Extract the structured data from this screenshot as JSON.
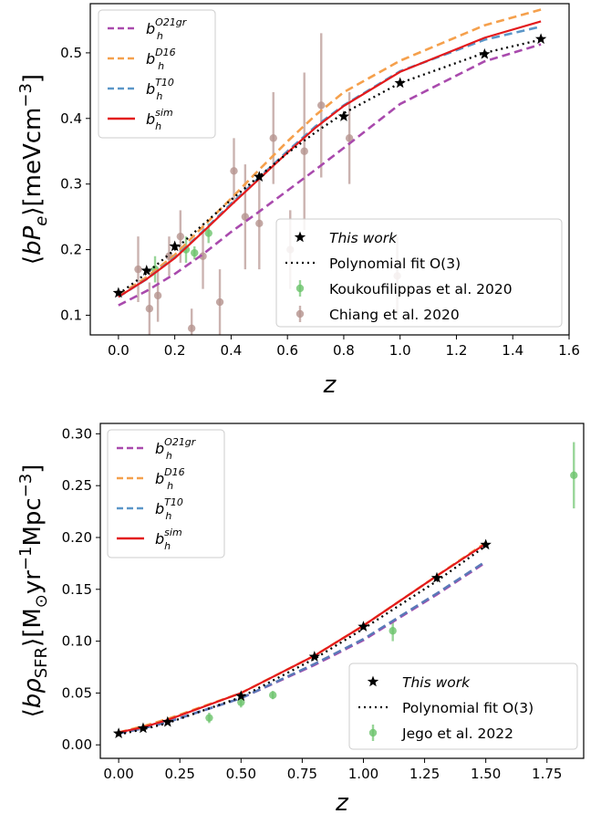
{
  "chart_data": [
    {
      "type": "line",
      "xlabel": "z",
      "ylabel": "⟨bP_e⟩[meVcm⁻³]",
      "xlim": [
        -0.1,
        1.6
      ],
      "ylim": [
        0.07,
        0.575
      ],
      "xticks": [
        "0.0",
        "0.2",
        "0.4",
        "0.6",
        "0.8",
        "1.0",
        "1.2",
        "1.4",
        "1.6"
      ],
      "yticks": [
        "0.1",
        "0.2",
        "0.3",
        "0.4",
        "0.5"
      ],
      "bias_legend": [
        {
          "base": "b",
          "sub": "h",
          "sup": "O21gr",
          "color": "#a94aad",
          "style": "dashed"
        },
        {
          "base": "b",
          "sub": "h",
          "sup": "D16",
          "color": "#f5a04c",
          "style": "dashed"
        },
        {
          "base": "b",
          "sub": "h",
          "sup": "T10",
          "color": "#5a96c8",
          "style": "dashed"
        },
        {
          "base": "b",
          "sub": "h",
          "sup": "sim",
          "color": "#e31a1c",
          "style": "solid"
        }
      ],
      "data_legend": [
        {
          "label": "This work",
          "italic": true,
          "marker": "star",
          "color": "#000000"
        },
        {
          "label": "Polynomial fit O(3)",
          "italic": false,
          "marker": "dotted",
          "color": "#000000"
        },
        {
          "label": "Koukoufilippas et al. 2020",
          "italic": false,
          "marker": "errorbar",
          "color": "#6cc36c"
        },
        {
          "label": "Chiang et al. 2020",
          "italic": false,
          "marker": "errorbar",
          "color": "#b5938e"
        }
      ],
      "series": [
        {
          "key": "O21gr",
          "color": "#a94aad",
          "dash": "9,5",
          "width": 2.6,
          "x": [
            0,
            0.1,
            0.2,
            0.3,
            0.4,
            0.5,
            0.6,
            0.7,
            0.8,
            1.0,
            1.3,
            1.5
          ],
          "y": [
            0.115,
            0.137,
            0.163,
            0.193,
            0.227,
            0.258,
            0.29,
            0.322,
            0.355,
            0.422,
            0.487,
            0.513
          ]
        },
        {
          "key": "D16",
          "color": "#f5a04c",
          "dash": "9,5",
          "width": 2.6,
          "x": [
            0,
            0.1,
            0.2,
            0.3,
            0.4,
            0.5,
            0.6,
            0.7,
            0.8,
            1.0,
            1.3,
            1.5
          ],
          "y": [
            0.13,
            0.158,
            0.192,
            0.235,
            0.278,
            0.322,
            0.365,
            0.405,
            0.44,
            0.488,
            0.542,
            0.566
          ]
        },
        {
          "key": "T10",
          "color": "#5a96c8",
          "dash": "9,5",
          "width": 2.6,
          "x": [
            0,
            0.1,
            0.2,
            0.3,
            0.4,
            0.5,
            0.6,
            0.7,
            0.8,
            1.0,
            1.3,
            1.5
          ],
          "y": [
            0.128,
            0.155,
            0.188,
            0.228,
            0.27,
            0.31,
            0.35,
            0.388,
            0.42,
            0.472,
            0.52,
            0.54
          ]
        },
        {
          "key": "sim",
          "color": "#e31a1c",
          "dash": "",
          "width": 2.2,
          "x": [
            0,
            0.1,
            0.2,
            0.3,
            0.4,
            0.5,
            0.6,
            0.7,
            0.8,
            1.0,
            1.3,
            1.5
          ],
          "y": [
            0.128,
            0.155,
            0.187,
            0.227,
            0.268,
            0.308,
            0.348,
            0.386,
            0.419,
            0.471,
            0.523,
            0.548
          ]
        },
        {
          "key": "fit",
          "color": "#000000",
          "dash": "2,4",
          "width": 2.3,
          "x": [
            0,
            0.1,
            0.2,
            0.3,
            0.4,
            0.5,
            0.6,
            0.7,
            0.8,
            1.0,
            1.3,
            1.5
          ],
          "y": [
            0.132,
            0.164,
            0.2,
            0.238,
            0.276,
            0.312,
            0.347,
            0.379,
            0.408,
            0.454,
            0.5,
            0.52
          ]
        }
      ],
      "this_work": {
        "x": [
          0,
          0.1,
          0.2,
          0.5,
          0.8,
          1.0,
          1.3,
          1.5
        ],
        "y": [
          0.134,
          0.168,
          0.205,
          0.311,
          0.403,
          0.454,
          0.498,
          0.521
        ]
      },
      "chiang": {
        "color": "#b5938e",
        "points": [
          {
            "x": 0.07,
            "y": 0.17,
            "err": 0.05
          },
          {
            "x": 0.11,
            "y": 0.11,
            "err": 0.04
          },
          {
            "x": 0.14,
            "y": 0.13,
            "err": 0.04
          },
          {
            "x": 0.18,
            "y": 0.19,
            "err": 0.03
          },
          {
            "x": 0.22,
            "y": 0.22,
            "err": 0.04
          },
          {
            "x": 0.26,
            "y": 0.08,
            "err": 0.03
          },
          {
            "x": 0.3,
            "y": 0.19,
            "err": 0.05
          },
          {
            "x": 0.36,
            "y": 0.12,
            "err": 0.05
          },
          {
            "x": 0.41,
            "y": 0.32,
            "err": 0.05
          },
          {
            "x": 0.45,
            "y": 0.25,
            "err": 0.08
          },
          {
            "x": 0.5,
            "y": 0.24,
            "err": 0.07
          },
          {
            "x": 0.55,
            "y": 0.37,
            "err": 0.07
          },
          {
            "x": 0.61,
            "y": 0.2,
            "err": 0.06
          },
          {
            "x": 0.66,
            "y": 0.35,
            "err": 0.12
          },
          {
            "x": 0.72,
            "y": 0.42,
            "err": 0.11
          },
          {
            "x": 0.82,
            "y": 0.37,
            "err": 0.07
          },
          {
            "x": 0.99,
            "y": 0.16,
            "err": 0.06
          }
        ]
      },
      "koukou": {
        "color": "#6cc36c",
        "points": [
          {
            "x": 0.13,
            "y": 0.17,
            "err": 0.02
          },
          {
            "x": 0.24,
            "y": 0.2,
            "err": 0.02
          },
          {
            "x": 0.27,
            "y": 0.195,
            "err": 0.01
          },
          {
            "x": 0.32,
            "y": 0.225,
            "err": 0.015
          }
        ]
      }
    },
    {
      "type": "line",
      "xlabel": "z",
      "ylabel": "⟨bρ_SFR⟩[M_⊙yr⁻¹Mpc⁻³]",
      "xlim": [
        -0.075,
        1.9
      ],
      "ylim": [
        -0.013,
        0.31
      ],
      "xticks": [
        "0.00",
        "0.25",
        "0.50",
        "0.75",
        "1.00",
        "1.25",
        "1.50",
        "1.75"
      ],
      "yticks": [
        "0.00",
        "0.05",
        "0.10",
        "0.15",
        "0.20",
        "0.25",
        "0.30"
      ],
      "bias_legend": [
        {
          "base": "b",
          "sub": "h",
          "sup": "O21gr",
          "color": "#a94aad",
          "style": "dashed"
        },
        {
          "base": "b",
          "sub": "h",
          "sup": "D16",
          "color": "#f5a04c",
          "style": "dashed"
        },
        {
          "base": "b",
          "sub": "h",
          "sup": "T10",
          "color": "#5a96c8",
          "style": "dashed"
        },
        {
          "base": "b",
          "sub": "h",
          "sup": "sim",
          "color": "#e31a1c",
          "style": "solid"
        }
      ],
      "data_legend": [
        {
          "label": "This work",
          "italic": true,
          "marker": "star",
          "color": "#000000"
        },
        {
          "label": "Polynomial fit O(3)",
          "italic": false,
          "marker": "dotted",
          "color": "#000000"
        },
        {
          "label": "Jego et al. 2022",
          "italic": false,
          "marker": "errorbar",
          "color": "#6cc36c"
        }
      ],
      "series": [
        {
          "key": "O21gr",
          "color": "#a94aad",
          "dash": "9,5",
          "width": 2.6,
          "x": [
            0,
            0.1,
            0.2,
            0.5,
            0.8,
            1.0,
            1.3,
            1.5
          ],
          "y": [
            0.011,
            0.016,
            0.022,
            0.045,
            0.077,
            0.101,
            0.145,
            0.176
          ]
        },
        {
          "key": "T10",
          "color": "#5a7ab8",
          "dash": "9,5",
          "width": 2.6,
          "x": [
            0,
            0.1,
            0.2,
            0.5,
            0.8,
            1.0,
            1.3,
            1.5
          ],
          "y": [
            0.011,
            0.016,
            0.022,
            0.045,
            0.078,
            0.102,
            0.146,
            0.177
          ]
        },
        {
          "key": "D16",
          "color": "#f5a04c",
          "dash": "9,5",
          "width": 2.6,
          "x": [
            0,
            0.1,
            0.2,
            0.5,
            0.8,
            1.0,
            1.3,
            1.5
          ],
          "y": [
            0.012,
            0.018,
            0.025,
            0.05,
            0.086,
            0.115,
            0.163,
            0.195
          ]
        },
        {
          "key": "sim",
          "color": "#e31a1c",
          "dash": "",
          "width": 2.2,
          "x": [
            0,
            0.1,
            0.2,
            0.5,
            0.8,
            1.0,
            1.3,
            1.5
          ],
          "y": [
            0.012,
            0.017,
            0.024,
            0.05,
            0.086,
            0.115,
            0.163,
            0.194
          ]
        },
        {
          "key": "fit",
          "color": "#000000",
          "dash": "2,4",
          "width": 2.3,
          "x": [
            0,
            0.1,
            0.2,
            0.5,
            0.8,
            1.0,
            1.3,
            1.5
          ],
          "y": [
            0.01,
            0.015,
            0.021,
            0.046,
            0.083,
            0.112,
            0.158,
            0.192
          ]
        }
      ],
      "this_work": {
        "x": [
          0,
          0.1,
          0.2,
          0.5,
          0.8,
          1.0,
          1.3,
          1.5
        ],
        "y": [
          0.011,
          0.016,
          0.022,
          0.047,
          0.085,
          0.114,
          0.161,
          0.193
        ]
      },
      "jego": {
        "color": "#6cc36c",
        "points": [
          {
            "x": 0.37,
            "y": 0.026,
            "err": 0.005
          },
          {
            "x": 0.5,
            "y": 0.041,
            "err": 0.005
          },
          {
            "x": 0.63,
            "y": 0.048,
            "err": 0.004
          },
          {
            "x": 1.12,
            "y": 0.11,
            "err": 0.01
          },
          {
            "x": 1.86,
            "y": 0.26,
            "err": 0.032
          }
        ]
      }
    }
  ]
}
